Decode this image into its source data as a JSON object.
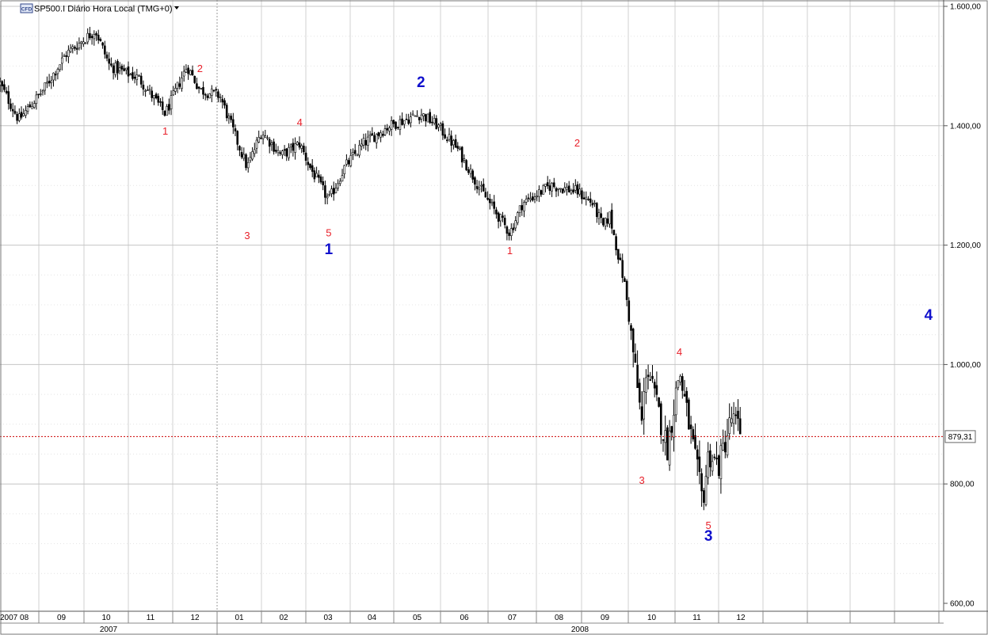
{
  "header": {
    "symbol_badge": "CFD",
    "title": "SP500.I Diário Hora Local (TMG+0)",
    "dropdown_icon": "triangle-down-icon"
  },
  "chart_data": {
    "type": "candlestick",
    "title": "SP500.I Diário Hora Local (TMG+0)",
    "y_axis": {
      "position": "right",
      "ylim": [
        600,
        1600
      ],
      "ticks": [
        600,
        800,
        1000,
        1200,
        1400,
        1600
      ],
      "tick_labels": [
        "600,00",
        "800,00",
        "1.000,00",
        "1.200,00",
        "1.400,00",
        "1.600,00"
      ]
    },
    "x_axis": {
      "month_labels": [
        "2007 08",
        "09",
        "10",
        "11",
        "12",
        "01",
        "02",
        "03",
        "04",
        "05",
        "06",
        "07",
        "08",
        "09",
        "10",
        "11",
        "12"
      ],
      "year_labels": [
        "2007",
        "2008"
      ],
      "grid": true
    },
    "current_price": {
      "value": 879.31,
      "label": "879,31",
      "line_color": "#cc0000"
    },
    "series": [
      {
        "x": [
          "2007-08-01",
          "2007-08-16",
          "2007-09-04",
          "2007-09-19",
          "2007-10-09",
          "2007-10-19",
          "2007-11-08",
          "2007-11-26",
          "2007-12-11",
          "2007-12-20",
          "2008-01-03",
          "2008-01-22",
          "2008-02-01",
          "2008-02-14",
          "2008-02-26",
          "2008-03-04",
          "2008-03-17",
          "2008-03-28",
          "2008-04-10",
          "2008-04-28",
          "2008-05-19",
          "2008-05-30",
          "2008-06-12",
          "2008-06-27",
          "2008-07-15",
          "2008-07-23",
          "2008-08-11",
          "2008-08-29",
          "2008-09-08",
          "2008-09-15",
          "2008-09-19",
          "2008-09-29",
          "2008-10-10",
          "2008-10-13",
          "2008-10-27",
          "2008-11-04",
          "2008-11-20",
          "2008-11-24",
          "2008-12-01",
          "2008-12-10",
          "2008-12-16",
          "2008-12-17"
        ],
        "y": [
          1470,
          1410,
          1460,
          1520,
          1560,
          1500,
          1480,
          1420,
          1500,
          1460,
          1450,
          1330,
          1390,
          1350,
          1370,
          1330,
          1275,
          1330,
          1370,
          1400,
          1420,
          1400,
          1360,
          1290,
          1220,
          1270,
          1300,
          1290,
          1270,
          1230,
          1250,
          1130,
          900,
          1000,
          860,
          990,
          770,
          850,
          830,
          910,
          890,
          880
        ]
      }
    ],
    "wave_labels": [
      {
        "text": "1",
        "date": "2007-11-26",
        "price": 1385,
        "color": "red"
      },
      {
        "text": "2",
        "date": "2007-12-20",
        "price": 1490,
        "color": "red"
      },
      {
        "text": "3",
        "date": "2008-01-22",
        "price": 1210,
        "color": "red"
      },
      {
        "text": "4",
        "date": "2008-02-26",
        "price": 1400,
        "color": "red"
      },
      {
        "text": "5",
        "date": "2008-03-17",
        "price": 1215,
        "color": "red"
      },
      {
        "text": "1",
        "date": "2008-03-17",
        "price": 1185,
        "color": "blue"
      },
      {
        "text": "2",
        "date": "2008-05-19",
        "price": 1465,
        "color": "blue"
      },
      {
        "text": "1",
        "date": "2008-07-15",
        "price": 1185,
        "color": "red"
      },
      {
        "text": "2",
        "date": "2008-08-29",
        "price": 1365,
        "color": "red"
      },
      {
        "text": "3",
        "date": "2008-10-10",
        "price": 800,
        "color": "red"
      },
      {
        "text": "4",
        "date": "2008-11-04",
        "price": 1015,
        "color": "red"
      },
      {
        "text": "5",
        "date": "2008-11-24",
        "price": 725,
        "color": "red"
      },
      {
        "text": "3",
        "date": "2008-11-24",
        "price": 705,
        "color": "blue"
      },
      {
        "text": "4",
        "date": "2009-04-24",
        "price": 1075,
        "color": "blue"
      }
    ],
    "colors": {
      "candle": "#000000",
      "grid": "#c8c8c8",
      "wave_red": "#e8202a",
      "wave_blue": "#1010cc"
    }
  }
}
